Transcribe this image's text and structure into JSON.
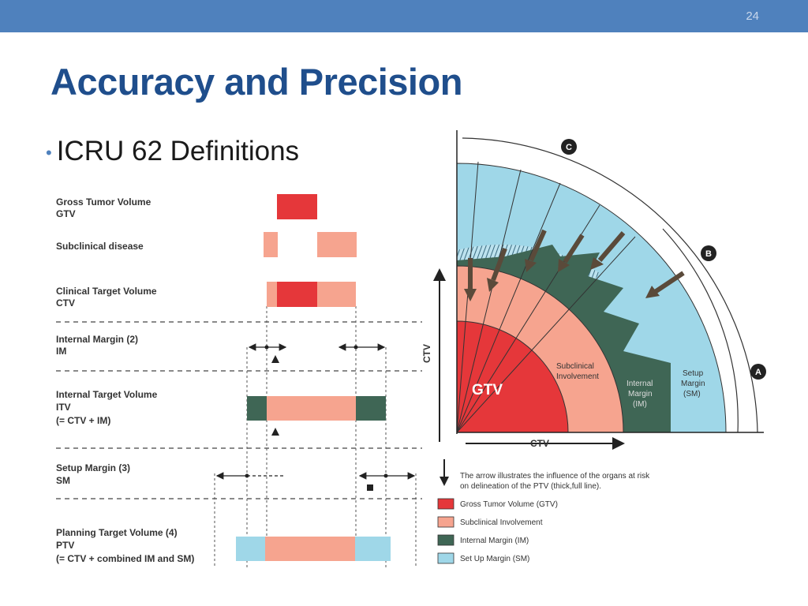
{
  "slide": {
    "number": "24",
    "title": "Accuracy and Precision",
    "bullet": "ICRU 62 Definitions"
  },
  "colors": {
    "gtv": "#e5373a",
    "subclinical": "#f6a48f",
    "internal_margin": "#3f6655",
    "setup_margin": "#9fd7e8",
    "accent": "#4f81bd"
  },
  "left_diagram": {
    "rows": [
      {
        "line1": "Gross Tumor Volume",
        "line2": "GTV"
      },
      {
        "line1": "Subclinical disease"
      },
      {
        "line1": "Clinical Target Volume",
        "line2": "CTV"
      },
      {
        "line1": "Internal Margin (2)",
        "line2": "IM"
      },
      {
        "line1": "Internal Target Volume",
        "line2": "ITV",
        "line3": "(= CTV + IM)"
      },
      {
        "line1": "Setup Margin (3)",
        "line2": "SM"
      },
      {
        "line1": "Planning Target Volume (4)",
        "line2": "PTV",
        "line3": "(= CTV + combined IM and SM)"
      }
    ]
  },
  "right_diagram": {
    "markers": [
      "C",
      "B",
      "A"
    ],
    "axis_label": "CTV",
    "regions": {
      "gtv": "GTV",
      "subclinical_1": "Subclinical",
      "subclinical_2": "Involvement",
      "im_1": "Internal",
      "im_2": "Margin",
      "im_3": "(IM)",
      "sm_1": "Setup",
      "sm_2": "Margin",
      "sm_3": "(SM)"
    },
    "legend": {
      "arrow_note_1": "The arrow illustrates the influence of the organs at risk",
      "arrow_note_2": "on delineation of the PTV (thick,full line).",
      "items": [
        "Gross Tumor Volume (GTV)",
        "Subclinical Involvement",
        "Internal Margin (IM)",
        "Set Up Margin (SM)"
      ]
    }
  }
}
